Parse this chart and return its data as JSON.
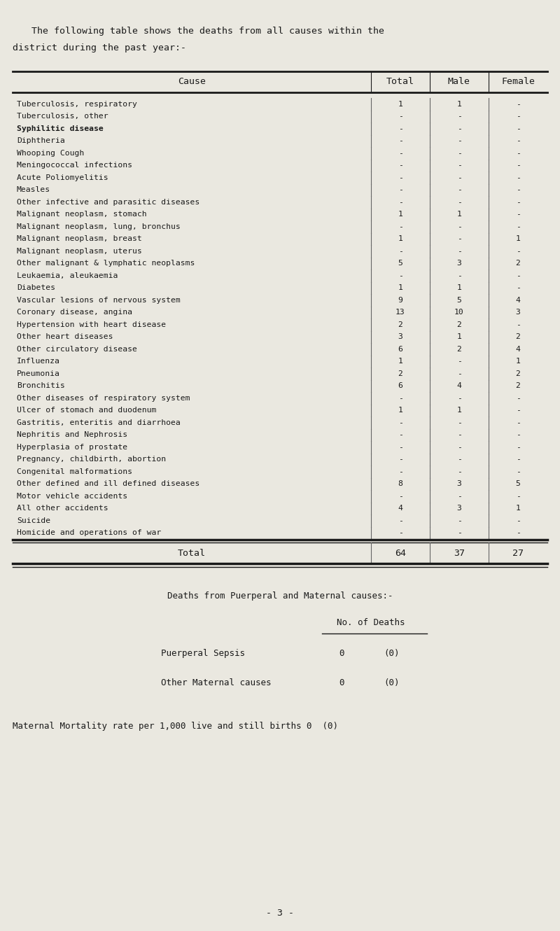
{
  "bg_color": "#eae8e0",
  "text_color": "#1a1a1a",
  "intro_text_line1": "The following table shows the deaths from all causes within the",
  "intro_text_line2": "district during the past year:-",
  "col_headers": [
    "Cause",
    "Total",
    "Male",
    "Female"
  ],
  "rows": [
    {
      "cause": "Tuberculosis, respiratory",
      "bold": false,
      "total": "1",
      "male": "1",
      "female": "-"
    },
    {
      "cause": "Tuberculosis, other",
      "bold": false,
      "total": "-",
      "male": "-",
      "female": "-"
    },
    {
      "cause": "Syphilitic disease",
      "bold": true,
      "total": "-",
      "male": "-",
      "female": "-"
    },
    {
      "cause": "Diphtheria",
      "bold": false,
      "total": "-",
      "male": "-",
      "female": "-"
    },
    {
      "cause": "Whooping Cough",
      "bold": false,
      "total": "-",
      "male": "-",
      "female": "-"
    },
    {
      "cause": "Meningococcal infections",
      "bold": false,
      "total": "-",
      "male": "-",
      "female": "-"
    },
    {
      "cause": "Acute Poliomyelitis",
      "bold": false,
      "total": "-",
      "male": "-",
      "female": "-"
    },
    {
      "cause": "Measles",
      "bold": false,
      "total": "-",
      "male": "-",
      "female": "-"
    },
    {
      "cause": "Other infective and parasitic diseases",
      "bold": false,
      "total": "-",
      "male": "-",
      "female": "-"
    },
    {
      "cause": "Malignant neoplasm, stomach",
      "bold": false,
      "total": "1",
      "male": "1",
      "female": "-"
    },
    {
      "cause": "Malignant neoplasm, lung, bronchus",
      "bold": false,
      "total": "-",
      "male": "-",
      "female": "-"
    },
    {
      "cause": "Malignant neoplasm, breast",
      "bold": false,
      "total": "1",
      "male": "-",
      "female": "1"
    },
    {
      "cause": "Malignant neoplasm, uterus",
      "bold": false,
      "total": "-",
      "male": "-",
      "female": "-"
    },
    {
      "cause": "Other malignant & lymphatic neoplasms",
      "bold": false,
      "total": "5",
      "male": "3",
      "female": "2"
    },
    {
      "cause": "Leukaemia, aleukaemia",
      "bold": false,
      "total": "-",
      "male": "-",
      "female": "-"
    },
    {
      "cause": "Diabetes",
      "bold": false,
      "total": "1",
      "male": "1",
      "female": "-"
    },
    {
      "cause": "Vascular lesions of nervous system",
      "bold": false,
      "total": "9",
      "male": "5",
      "female": "4"
    },
    {
      "cause": "Coronary disease, angina",
      "bold": false,
      "total": "13",
      "male": "10",
      "female": "3"
    },
    {
      "cause": "Hypertension with heart disease",
      "bold": false,
      "total": "2",
      "male": "2",
      "female": "-"
    },
    {
      "cause": "Other heart diseases",
      "bold": false,
      "total": "3",
      "male": "1",
      "female": "2"
    },
    {
      "cause": "Other circulatory disease",
      "bold": false,
      "total": "6",
      "male": "2",
      "female": "4"
    },
    {
      "cause": "Influenza",
      "bold": false,
      "total": "1",
      "male": "-",
      "female": "1"
    },
    {
      "cause": "Pneumonia",
      "bold": false,
      "total": "2",
      "male": "-",
      "female": "2"
    },
    {
      "cause": "Bronchitis",
      "bold": false,
      "total": "6",
      "male": "4",
      "female": "2"
    },
    {
      "cause": "Other diseases of respiratory system",
      "bold": false,
      "total": "-",
      "male": "-",
      "female": "-"
    },
    {
      "cause": "Ulcer of stomach and duodenum",
      "bold": false,
      "total": "1",
      "male": "1",
      "female": "-"
    },
    {
      "cause": "Gastritis, enteritis and diarrhoea",
      "bold": false,
      "total": "-",
      "male": "-",
      "female": "-"
    },
    {
      "cause": "Nephritis and Nephrosis",
      "bold": false,
      "total": "-",
      "male": "-",
      "female": "-"
    },
    {
      "cause": "Hyperplasia of prostate",
      "bold": false,
      "total": "-",
      "male": "-",
      "female": "-"
    },
    {
      "cause": "Pregnancy, childbirth, abortion",
      "bold": false,
      "total": "-",
      "male": "-",
      "female": "-"
    },
    {
      "cause": "Congenital malformations",
      "bold": false,
      "total": "-",
      "male": "-",
      "female": "-"
    },
    {
      "cause": "Other defined and ill defined diseases",
      "bold": false,
      "total": "8",
      "male": "3",
      "female": "5"
    },
    {
      "cause": "Motor vehicle accidents",
      "bold": false,
      "total": "-",
      "male": "-",
      "female": "-"
    },
    {
      "cause": "All other accidents",
      "bold": false,
      "total": "4",
      "male": "3",
      "female": "1"
    },
    {
      "cause": "Suicide",
      "bold": false,
      "total": "-",
      "male": "-",
      "female": "-"
    },
    {
      "cause": "Homicide and operations of war",
      "bold": false,
      "total": "-",
      "male": "-",
      "female": "-"
    }
  ],
  "total_row": {
    "cause": "Total",
    "total": "64",
    "male": "37",
    "female": "27"
  },
  "puerperal_title": "Deaths from Puerperal and Maternal causes:-",
  "puerperal_col_header": "No. of Deaths",
  "puerperal_rows": [
    {
      "label": "Puerperal Sepsis",
      "value": "0",
      "prev": "(0)"
    },
    {
      "label": "Other Maternal causes",
      "value": "0",
      "prev": "(0)"
    }
  ],
  "maternal_mortality_text": "Maternal Mortality rate per 1,000 live and still births 0  (0)",
  "page_number": "- 3 -",
  "figsize": [
    8.0,
    13.3
  ],
  "dpi": 100
}
